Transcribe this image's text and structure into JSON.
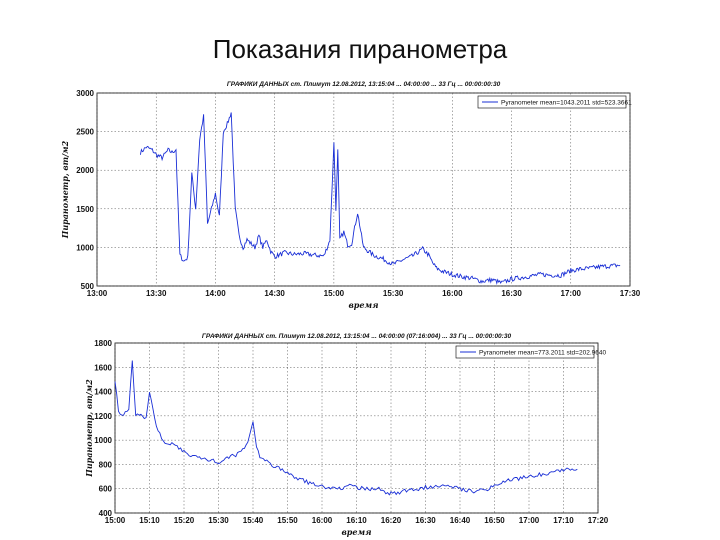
{
  "slide": {
    "title": "Показания пиранометра"
  },
  "chart_data": [
    {
      "type": "line",
      "title": "ГРАФИКИ ДАННЫХ ст. Плимут 12.08.2012, 13:15:04 ... 04:00:00 ... 33 Гц ... 00:00:00:30",
      "xlabel": "время",
      "ylabel": "Пиранометр, вт/м2",
      "xlim": [
        "13:00",
        "17:30"
      ],
      "ylim": [
        500,
        3000
      ],
      "xticks": [
        "13:00",
        "13:30",
        "14:00",
        "14:30",
        "15:00",
        "15:30",
        "16:00",
        "16:30",
        "17:00",
        "17:30"
      ],
      "yticks": [
        500,
        1000,
        1500,
        2000,
        2500,
        3000
      ],
      "grid": true,
      "legend_position": "top-right",
      "color": "#1a2fd6",
      "series": [
        {
          "name": "Pyranometer",
          "legend_text": "Pyranometer   mean=1043.2011 std=523.3661",
          "x": [
            "13:22",
            "13:25",
            "13:28",
            "13:30",
            "13:33",
            "13:36",
            "13:38",
            "13:40",
            "13:42",
            "13:44",
            "13:46",
            "13:48",
            "13:50",
            "13:52",
            "13:54",
            "13:56",
            "13:58",
            "14:00",
            "14:02",
            "14:04",
            "14:06",
            "14:08",
            "14:10",
            "14:12",
            "14:14",
            "14:16",
            "14:18",
            "14:20",
            "14:22",
            "14:24",
            "14:26",
            "14:28",
            "14:30",
            "14:35",
            "14:40",
            "14:45",
            "14:50",
            "14:55",
            "14:58",
            "15:00",
            "15:01",
            "15:02",
            "15:03",
            "15:05",
            "15:07",
            "15:09",
            "15:12",
            "15:15",
            "15:20",
            "15:25",
            "15:30",
            "15:35",
            "15:40",
            "15:45",
            "15:48",
            "15:50",
            "15:52",
            "15:55",
            "16:00",
            "16:05",
            "16:10",
            "16:15",
            "16:20",
            "16:25",
            "16:30",
            "16:35",
            "16:40",
            "16:45",
            "16:50",
            "16:55",
            "17:00",
            "17:05",
            "17:10",
            "17:15",
            "17:20",
            "17:25"
          ],
          "values": [
            2230,
            2300,
            2260,
            2200,
            2160,
            2260,
            2230,
            2270,
            900,
            820,
            870,
            1960,
            1500,
            2400,
            2700,
            1300,
            1500,
            1700,
            1400,
            2500,
            2600,
            2750,
            1500,
            1150,
            1000,
            1100,
            1050,
            1000,
            1150,
            1000,
            1100,
            950,
            880,
            930,
            910,
            920,
            900,
            890,
            1100,
            2350,
            1500,
            2250,
            1100,
            1200,
            1030,
            1050,
            1450,
            1000,
            900,
            850,
            780,
            840,
            890,
            980,
            900,
            800,
            730,
            690,
            650,
            620,
            600,
            560,
            580,
            540,
            590,
            610,
            630,
            650,
            640,
            640,
            700,
            720,
            730,
            750,
            760,
            770
          ]
        }
      ]
    },
    {
      "type": "line",
      "title": "ГРАФИКИ ДАННЫХ ст. Плимут 12.08.2012, 13:15:04 ... 04:00:00 (07:16:004) ... 33 Гц ... 00:00:00:30",
      "xlabel": "время",
      "ylabel": "Пиранометр, вт/м2",
      "xlim": [
        "15:00",
        "17:20"
      ],
      "ylim": [
        400,
        1800
      ],
      "xticks": [
        "15:00",
        "15:10",
        "15:20",
        "15:30",
        "15:40",
        "15:50",
        "16:00",
        "16:10",
        "16:20",
        "16:30",
        "16:40",
        "16:50",
        "17:00",
        "17:10",
        "17:20"
      ],
      "yticks": [
        400,
        600,
        800,
        1000,
        1200,
        1400,
        1600,
        1800
      ],
      "grid": true,
      "legend_position": "top-right",
      "color": "#1a2fd6",
      "series": [
        {
          "name": "Pyranometer",
          "legend_text": "Pyranometer   mean=773.2011 std=202.9640",
          "x": [
            "15:00",
            "15:01",
            "15:02",
            "15:03",
            "15:04",
            "15:05",
            "15:06",
            "15:07",
            "15:08",
            "15:09",
            "15:10",
            "15:11",
            "15:12",
            "15:13",
            "15:14",
            "15:15",
            "15:18",
            "15:20",
            "15:25",
            "15:30",
            "15:35",
            "15:38",
            "15:40",
            "15:41",
            "15:42",
            "15:44",
            "15:48",
            "15:52",
            "15:56",
            "16:00",
            "16:04",
            "16:08",
            "16:12",
            "16:16",
            "16:20",
            "16:24",
            "16:28",
            "16:32",
            "16:36",
            "16:40",
            "16:44",
            "16:48",
            "16:52",
            "16:56",
            "17:00",
            "17:04",
            "17:08",
            "17:12",
            "17:14"
          ],
          "values": [
            1500,
            1250,
            1200,
            1220,
            1250,
            1650,
            1200,
            1220,
            1200,
            1180,
            1400,
            1250,
            1100,
            1050,
            1000,
            980,
            950,
            900,
            850,
            820,
            880,
            950,
            1150,
            950,
            860,
            820,
            760,
            700,
            650,
            620,
            600,
            620,
            600,
            600,
            560,
            580,
            600,
            620,
            640,
            600,
            580,
            600,
            650,
            680,
            700,
            720,
            750,
            760,
            760
          ]
        }
      ]
    }
  ]
}
